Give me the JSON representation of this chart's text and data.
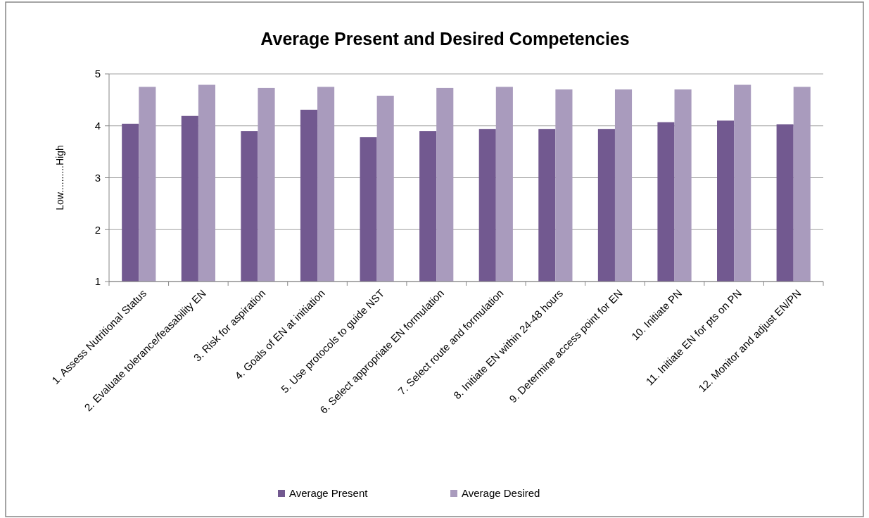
{
  "chart_data": {
    "type": "bar",
    "title": "Average Present and Desired Competencies",
    "ylabel": "Low..........High",
    "categories": [
      "1. Assess Nutritional Status",
      "2. Evaluate tolerance/feasability EN",
      "3. Risk for aspiration",
      "4. Goals of EN at initiation",
      "5. Use protocols to guide NST",
      "6. Select appropriate EN formulation",
      "7. Select route and formulation",
      "8. Initiate EN within 24-48 hours",
      "9. Determine access point for EN",
      "10. Initiate PN",
      "11. Initiate EN for pts on PN",
      "12. Monitor and adjust EN/PN"
    ],
    "series": [
      {
        "name": "Average Present",
        "color": "#725990",
        "values": [
          4.04,
          4.19,
          3.9,
          4.31,
          3.78,
          3.9,
          3.94,
          3.94,
          3.94,
          4.07,
          4.1,
          4.03
        ]
      },
      {
        "name": "Average Desired",
        "color": "#a99bbd",
        "values": [
          4.75,
          4.79,
          4.73,
          4.75,
          4.58,
          4.73,
          4.75,
          4.7,
          4.7,
          4.7,
          4.79,
          4.75
        ]
      }
    ],
    "ylim": [
      1,
      5
    ],
    "yticks": [
      1,
      2,
      3,
      4,
      5
    ],
    "grid": "y",
    "legend": "bottom"
  }
}
